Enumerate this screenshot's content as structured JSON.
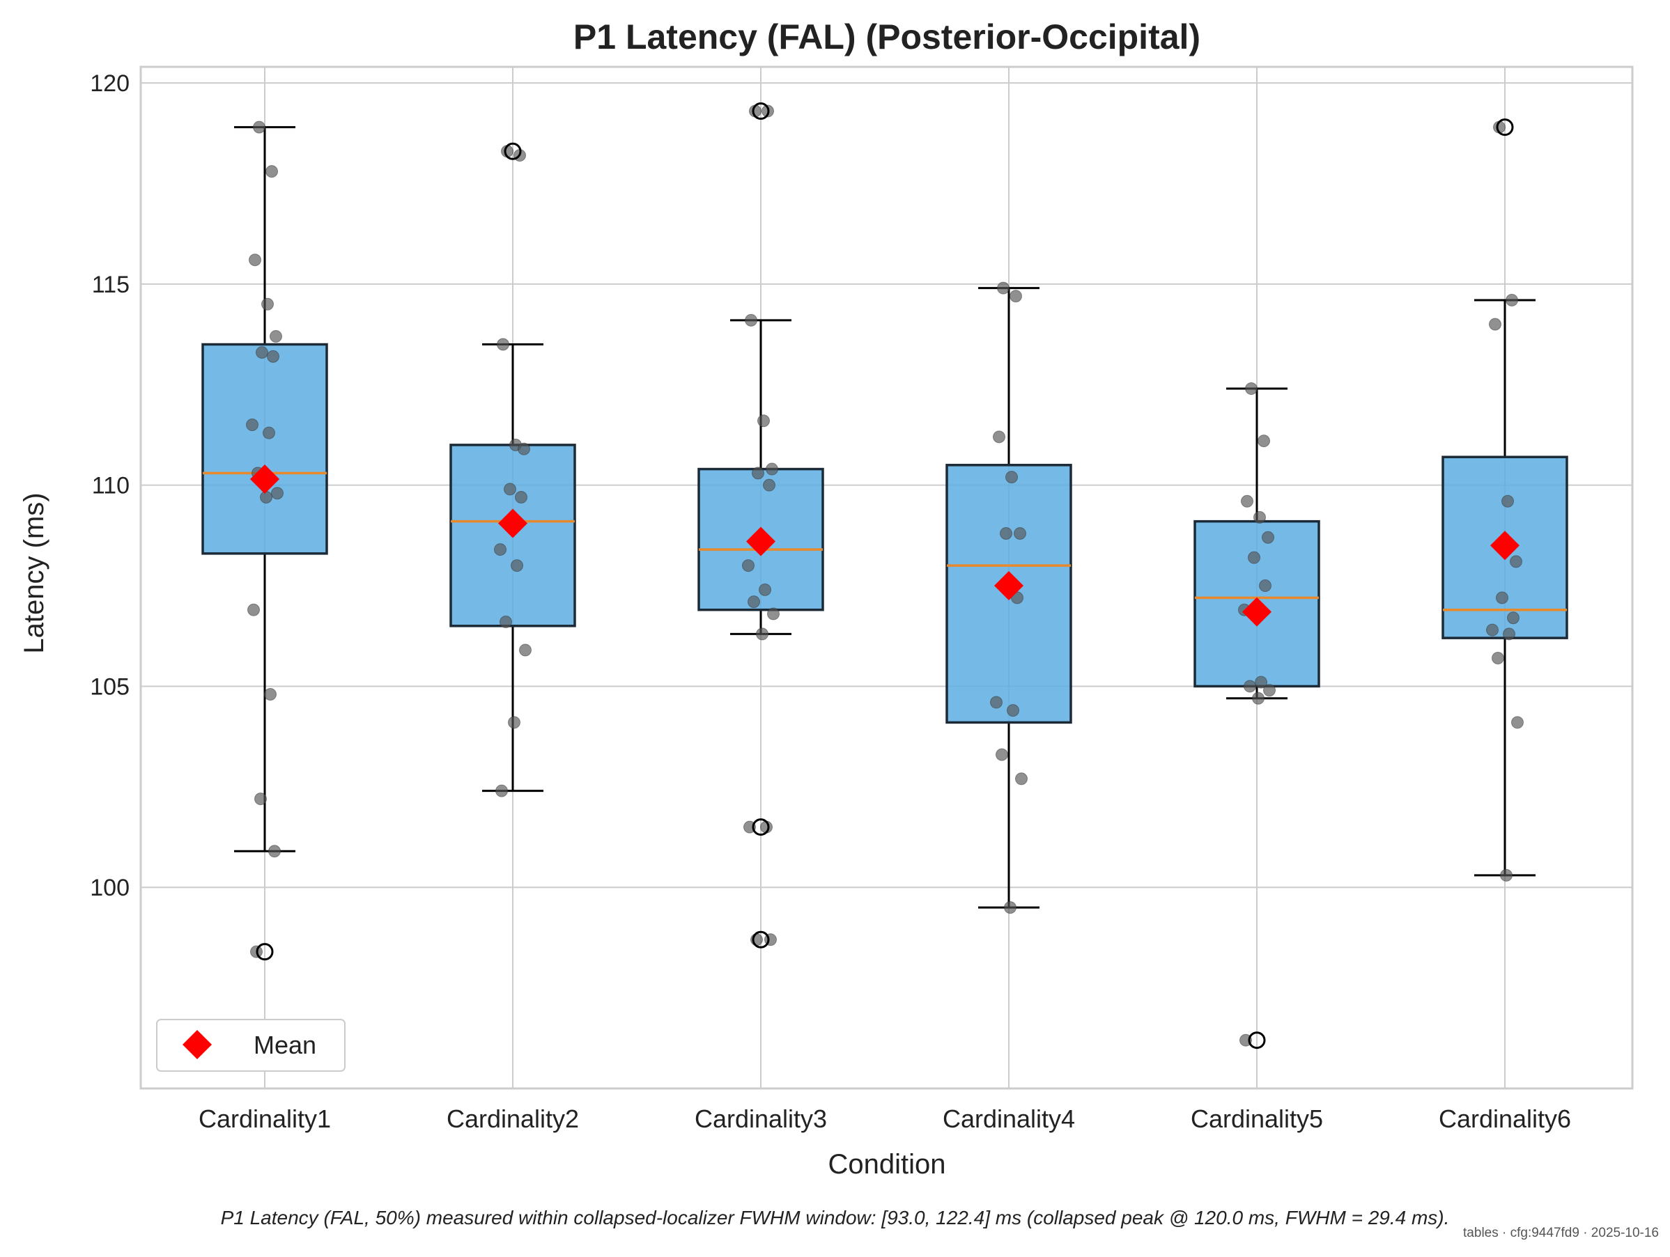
{
  "chart_data": {
    "type": "box",
    "title": "P1 Latency (FAL) (Posterior-Occipital)",
    "xlabel": "Condition",
    "ylabel": "Latency (ms)",
    "ylim": [
      95,
      120.4
    ],
    "yticks": [
      100,
      105,
      110,
      115,
      120
    ],
    "grid": true,
    "legend": {
      "position": "lower-left",
      "entries": [
        "Mean"
      ]
    },
    "colors": {
      "box_fill": "#5DADE2",
      "box_edge": "#1b2a36",
      "median": "#E8892B",
      "mean": "#FF0000",
      "points": "#555555",
      "grid": "#cccccc"
    },
    "categories": [
      "Cardinality1",
      "Cardinality2",
      "Cardinality3",
      "Cardinality4",
      "Cardinality5",
      "Cardinality6"
    ],
    "boxes": [
      {
        "category": "Cardinality1",
        "whisker_low": 100.9,
        "q1": 108.3,
        "median": 110.3,
        "q3": 113.5,
        "whisker_high": 118.9,
        "mean": 110.15,
        "outliers": [
          98.4
        ],
        "points": [
          118.9,
          117.8,
          115.6,
          114.5,
          113.7,
          113.3,
          113.2,
          111.5,
          111.3,
          110.3,
          109.8,
          109.7,
          106.9,
          104.8,
          102.2,
          100.9,
          98.4
        ]
      },
      {
        "category": "Cardinality2",
        "whisker_low": 102.4,
        "q1": 106.5,
        "median": 109.1,
        "q3": 111.0,
        "whisker_high": 113.5,
        "mean": 109.05,
        "outliers": [
          118.3
        ],
        "points": [
          118.3,
          118.2,
          113.5,
          111.0,
          110.9,
          109.9,
          109.7,
          108.4,
          108.0,
          106.6,
          105.9,
          104.1,
          102.4
        ]
      },
      {
        "category": "Cardinality3",
        "whisker_low": 106.3,
        "q1": 106.9,
        "median": 108.4,
        "q3": 110.4,
        "whisker_high": 114.1,
        "mean": 108.6,
        "outliers": [
          119.3,
          101.5,
          98.7
        ],
        "points": [
          119.3,
          119.3,
          114.1,
          111.6,
          110.4,
          110.3,
          110.0,
          108.0,
          107.4,
          107.1,
          106.8,
          106.3,
          101.5,
          101.5,
          98.7,
          98.7
        ]
      },
      {
        "category": "Cardinality4",
        "whisker_low": 99.5,
        "q1": 104.1,
        "median": 108.0,
        "q3": 110.5,
        "whisker_high": 114.9,
        "mean": 107.5,
        "outliers": [],
        "points": [
          114.9,
          114.7,
          111.2,
          110.2,
          108.8,
          108.8,
          107.2,
          104.6,
          104.4,
          103.3,
          102.7,
          99.5
        ]
      },
      {
        "category": "Cardinality5",
        "whisker_low": 104.7,
        "q1": 105.0,
        "median": 107.2,
        "q3": 109.1,
        "whisker_high": 112.4,
        "mean": 106.85,
        "outliers": [
          96.2
        ],
        "points": [
          112.4,
          111.1,
          109.6,
          109.2,
          108.7,
          108.2,
          107.5,
          106.9,
          105.1,
          105.0,
          104.9,
          104.7,
          96.2
        ]
      },
      {
        "category": "Cardinality6",
        "whisker_low": 100.3,
        "q1": 106.2,
        "median": 106.9,
        "q3": 110.7,
        "whisker_high": 114.6,
        "mean": 108.5,
        "outliers": [
          118.9
        ],
        "points": [
          118.9,
          114.6,
          114.0,
          109.6,
          108.1,
          107.2,
          106.7,
          106.4,
          106.3,
          105.7,
          104.1,
          100.3
        ]
      }
    ]
  },
  "footer": {
    "caption": "P1 Latency (FAL, 50%) measured within collapsed-localizer FWHM window: [93.0, 122.4] ms (collapsed peak @ 120.0 ms, FWHM = 29.4 ms).",
    "stamp": "tables · cfg:9447fd9 · 2025-10-16"
  }
}
